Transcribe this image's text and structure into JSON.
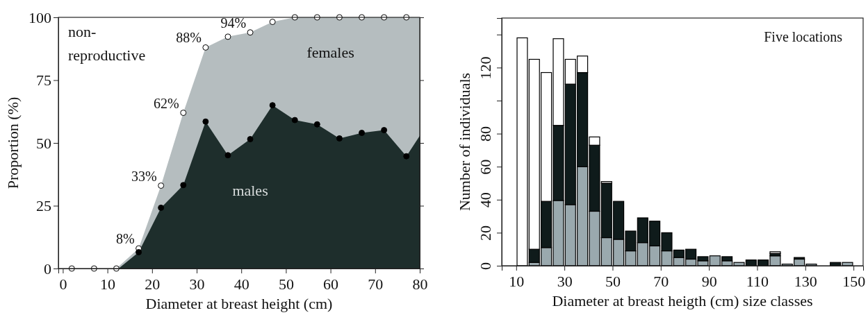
{
  "chart_data": [
    {
      "type": "area",
      "xlabel": "Diameter at breast height (cm)",
      "ylabel": "Proportion (%)",
      "xlim": [
        -1,
        80
      ],
      "xticks": [
        0,
        10,
        20,
        30,
        40,
        50,
        60,
        70,
        80
      ],
      "ylim": [
        0,
        100
      ],
      "yticks": [
        0,
        25,
        50,
        75,
        100
      ],
      "marker": "circle",
      "annotations": [
        "non-reproductive"
      ],
      "series": [
        {
          "name": "females",
          "marker": "none",
          "color": "#b5bdbf",
          "x": [
            2,
            7,
            12,
            17,
            22,
            27,
            32,
            37,
            42,
            47,
            52,
            57,
            62,
            67,
            72,
            77,
            80
          ],
          "values": [
            0,
            0,
            0,
            8,
            33,
            62,
            88,
            92.3,
            94,
            98.2,
            100,
            100,
            100,
            100,
            100,
            100,
            100
          ]
        },
        {
          "name": "males",
          "marker": "none",
          "color": "#1e2e2c",
          "x": [
            12.5,
            17,
            22,
            27,
            32,
            37,
            42,
            47,
            52,
            57,
            62,
            67,
            72,
            77,
            80
          ],
          "values": [
            0,
            6.5,
            24.2,
            33.2,
            58.5,
            45.1,
            51.5,
            65,
            59.1,
            57.4,
            51.8,
            54,
            55.1,
            44.7,
            52.8
          ]
        },
        {
          "type": "scatter",
          "color": "#ffffff",
          "x": [
            2,
            7,
            12,
            17,
            22,
            27,
            32,
            37,
            42,
            47,
            52,
            57,
            62,
            67,
            72,
            77
          ],
          "values": [
            0,
            0,
            0,
            8,
            33,
            62,
            88,
            92.3,
            94,
            98.2,
            100,
            100,
            100,
            100,
            100,
            100
          ],
          "value_labels": [
            null,
            null,
            null,
            "8%",
            "33%",
            "62%",
            "88%",
            null,
            "94%",
            null,
            null,
            null,
            null,
            null,
            null,
            null
          ]
        },
        {
          "type": "scatter",
          "color": "#000000",
          "x": [
            17,
            22,
            27,
            32,
            37,
            42,
            47,
            52,
            57,
            62,
            67,
            72,
            77
          ],
          "values": [
            6.5,
            24.2,
            33.2,
            58.5,
            45.1,
            51.5,
            65,
            59.1,
            57.4,
            51.8,
            54,
            55.1,
            44.7
          ]
        }
      ]
    },
    {
      "type": "bar",
      "stacked": true,
      "xlabel": "Diameter at breast heigth (cm) size classes",
      "ylabel": "Number of individuals",
      "xlim": [
        4,
        154
      ],
      "xticks": [
        10,
        30,
        50,
        70,
        90,
        110,
        130,
        150
      ],
      "ylim": [
        0,
        150
      ],
      "yticks": [
        0,
        20,
        40,
        60,
        80,
        {
          "value": 100,
          "label": null
        },
        120,
        {
          "value": 140,
          "label": null
        }
      ],
      "annotations": [
        "Five locations"
      ],
      "x": [
        12.5,
        17.5,
        22.5,
        27.5,
        32.5,
        37.5,
        42.5,
        47.5,
        52.5,
        57.5,
        62.5,
        67.5,
        72.5,
        77.5,
        82.5,
        87.5,
        92.5,
        97.5,
        102.5,
        107.5,
        112.5,
        117.5,
        122.5,
        127.5,
        132.5,
        137.5,
        142.5,
        147.5
      ],
      "series": [
        {
          "color": "#9aa9ae",
          "values": [
            0,
            2,
            11,
            39.5,
            37,
            60,
            33,
            17,
            16,
            9,
            14,
            12,
            9,
            5,
            4,
            3,
            6,
            3,
            2,
            null,
            null,
            6,
            1,
            4,
            1,
            0,
            0,
            2
          ]
        },
        {
          "color": "#0f1b1b",
          "values": [
            0,
            8,
            28,
            45.5,
            73,
            57,
            40,
            33,
            23,
            12,
            15,
            15,
            11,
            4.5,
            6,
            2.5,
            0,
            2.5,
            0,
            3.5,
            3.5,
            1.5,
            0,
            1,
            0,
            0,
            2,
            0
          ]
        },
        {
          "color": "#ffffff",
          "values": [
            138,
            115,
            78,
            52.5,
            15,
            10,
            5,
            1,
            0,
            0,
            0,
            0,
            0,
            0,
            0,
            0,
            0,
            0,
            0,
            0,
            0,
            1,
            0,
            0,
            0,
            0,
            0,
            0
          ]
        }
      ]
    }
  ]
}
